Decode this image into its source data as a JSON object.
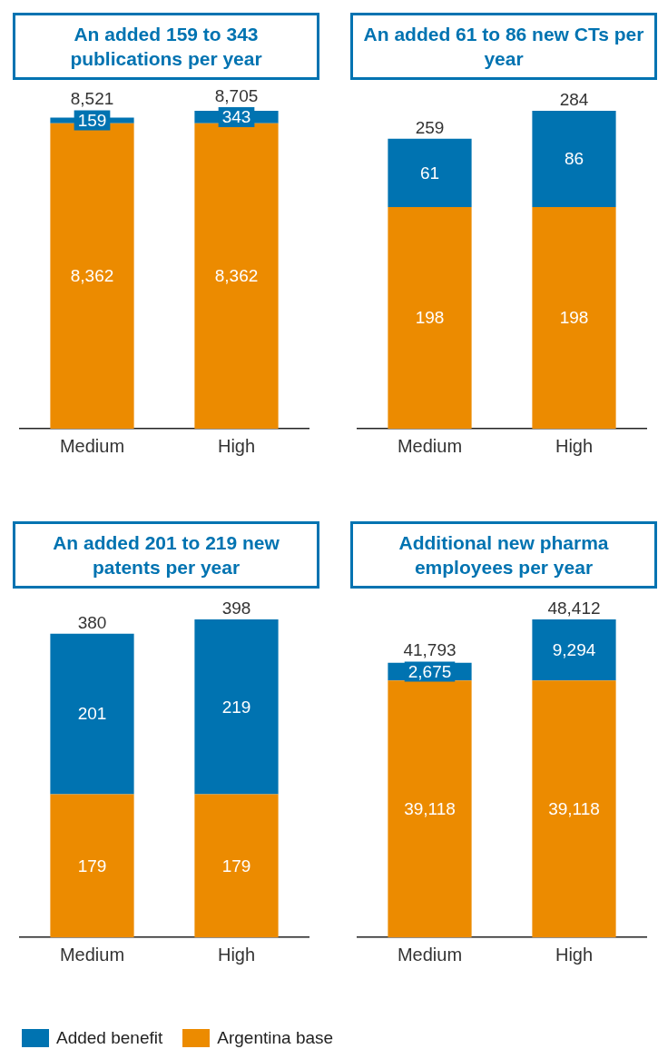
{
  "chart_data": [
    {
      "type": "bar",
      "title": "An added 159 to 343 publications per year",
      "categories": [
        "Medium",
        "High"
      ],
      "stacked": true,
      "totals": [
        "8,521",
        "8,705"
      ],
      "grid": false,
      "series": [
        {
          "color": "#ec8b00",
          "values": [
            8362,
            8362
          ],
          "value_labels": [
            "8,362",
            "8,362"
          ]
        },
        {
          "color": "#0073b1",
          "values": [
            159,
            343
          ],
          "value_labels": [
            "159",
            "343"
          ]
        }
      ]
    },
    {
      "type": "bar",
      "title": "An added 61 to 86 new CTs per year",
      "categories": [
        "Medium",
        "High"
      ],
      "stacked": true,
      "totals": [
        "259",
        "284"
      ],
      "grid": false,
      "series": [
        {
          "color": "#ec8b00",
          "values": [
            198,
            198
          ],
          "value_labels": [
            "198",
            "198"
          ]
        },
        {
          "color": "#0073b1",
          "values": [
            61,
            86
          ],
          "value_labels": [
            "61",
            "86"
          ]
        }
      ]
    },
    {
      "type": "bar",
      "title": "An added 201 to 219 new patents per year",
      "categories": [
        "Medium",
        "High"
      ],
      "stacked": true,
      "totals": [
        "380",
        "398"
      ],
      "grid": false,
      "series": [
        {
          "color": "#ec8b00",
          "values": [
            179,
            179
          ],
          "value_labels": [
            "179",
            "179"
          ]
        },
        {
          "color": "#0073b1",
          "values": [
            201,
            219
          ],
          "value_labels": [
            "201",
            "219"
          ]
        }
      ]
    },
    {
      "type": "bar",
      "title": "Additional new pharma employees per year",
      "categories": [
        "Medium",
        "High"
      ],
      "stacked": true,
      "totals": [
        "41,793",
        "48,412"
      ],
      "grid": false,
      "legend": "bottom left",
      "series": [
        {
          "name": "Argentina base",
          "color": "#ec8b00",
          "values": [
            39118,
            39118
          ],
          "value_labels": [
            "39,118",
            "39,118"
          ]
        },
        {
          "name": "Added benefit",
          "color": "#0073b1",
          "values": [
            2675,
            9294
          ],
          "value_labels": [
            "2,675",
            "9,294"
          ]
        }
      ]
    }
  ]
}
